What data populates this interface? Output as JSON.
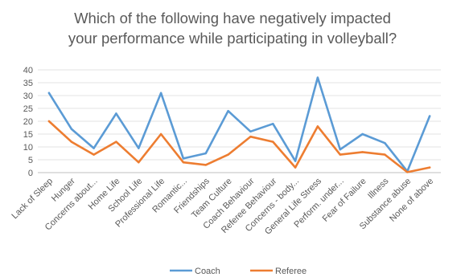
{
  "chart_data": {
    "type": "line",
    "title_lines": [
      "Which of the following have negatively impacted",
      "your performance while participating in volleyball?"
    ],
    "categories": [
      "Lack of Sleep",
      "Hunger",
      "Concerns about...",
      "Home Life",
      "School Life",
      "Professional Life",
      "Romantic...",
      "Friendships",
      "Team Culture",
      "Coach Behaviour",
      "Referee Behaviour",
      "Concerns - body...",
      "General Life Stress",
      "Perform. under...",
      "Fear of Failure",
      "Illness",
      "Substance abuse",
      "None of above"
    ],
    "series": [
      {
        "name": "Coach",
        "color": "#5b9bd5",
        "values": [
          31,
          17,
          9.5,
          23,
          9.5,
          31,
          5.5,
          7.5,
          24,
          16,
          19,
          4.5,
          37,
          9,
          15,
          11.5,
          0.5,
          22
        ]
      },
      {
        "name": "Referee",
        "color": "#ed7d31",
        "values": [
          20,
          12,
          7,
          12,
          4,
          15,
          4,
          3,
          7,
          14,
          12,
          2,
          18,
          7,
          8,
          7,
          0.2,
          2
        ]
      }
    ],
    "yticks": [
      0,
      5,
      10,
      15,
      20,
      25,
      30,
      35,
      40
    ],
    "ylim": [
      0,
      40
    ],
    "grid": true,
    "legend_position": "bottom"
  }
}
